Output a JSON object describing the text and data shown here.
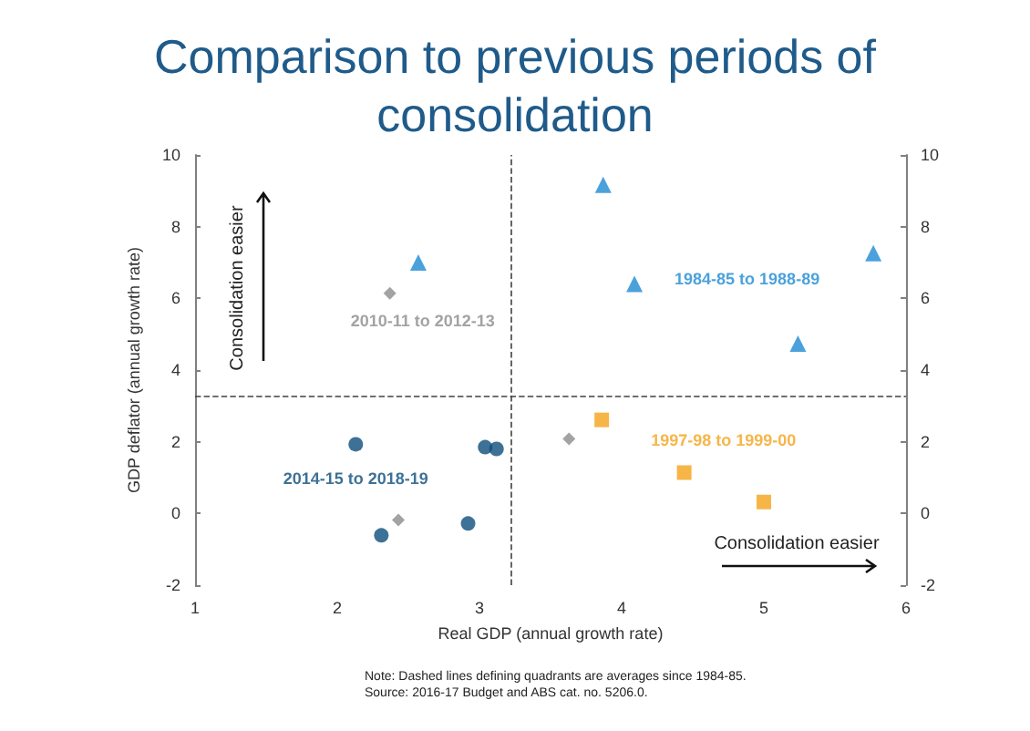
{
  "chart_data": {
    "type": "scatter",
    "title": "Comparison to previous periods of consolidation",
    "xlabel": "Real GDP (annual growth rate)",
    "ylabel": "GDP deflator (annual growth rate)",
    "xlim": [
      1,
      6
    ],
    "xticks": [
      1,
      2,
      3,
      4,
      5,
      6
    ],
    "ylim": [
      -2,
      10
    ],
    "yticks": [
      -2,
      0,
      2,
      4,
      6,
      8,
      10
    ],
    "y2lim": [
      -2,
      10
    ],
    "y2ticks": [
      -2,
      0,
      2,
      4,
      6,
      8,
      10
    ],
    "grid": false,
    "legend": false,
    "series": [
      {
        "name": "1984-85 to 1988-89",
        "color": "#1e8ad3",
        "marker": "triangle",
        "x": [
          2.57,
          3.87,
          4.09,
          5.24,
          5.77
        ],
        "values": [
          7.0,
          9.17,
          6.4,
          4.74,
          7.26
        ]
      },
      {
        "name": "1997-98 to 1999-00",
        "color": "#f5a31a",
        "marker": "square",
        "x": [
          3.86,
          4.44,
          5.0
        ],
        "values": [
          2.61,
          1.14,
          0.32
        ]
      },
      {
        "name": "2010-11 to 2012-13",
        "color": "#8c8c8c",
        "marker": "diamond",
        "x": [
          2.37,
          2.43,
          3.63
        ],
        "values": [
          6.14,
          -0.18,
          2.08
        ]
      },
      {
        "name": "2014-15 to 2018-19",
        "color": "#0d4d7c",
        "marker": "circle",
        "x": [
          2.13,
          2.31,
          2.92,
          3.04,
          3.12
        ],
        "values": [
          1.93,
          -0.61,
          -0.28,
          1.85,
          1.8
        ]
      }
    ],
    "ref_lines": [
      {
        "axis": "x",
        "value": 3.22,
        "color": "#404040",
        "line_style": "dashed"
      },
      {
        "axis": "y",
        "value": 3.27,
        "color": "#404040",
        "line_style": "dashed"
      }
    ],
    "annotations": [
      "Consolidation easier",
      "Consolidation easier",
      "Note: Dashed lines defining quadrants are averages since 1984-85.",
      "Source: 2016-17 Budget and ABS cat. no. 5206.0."
    ]
  }
}
